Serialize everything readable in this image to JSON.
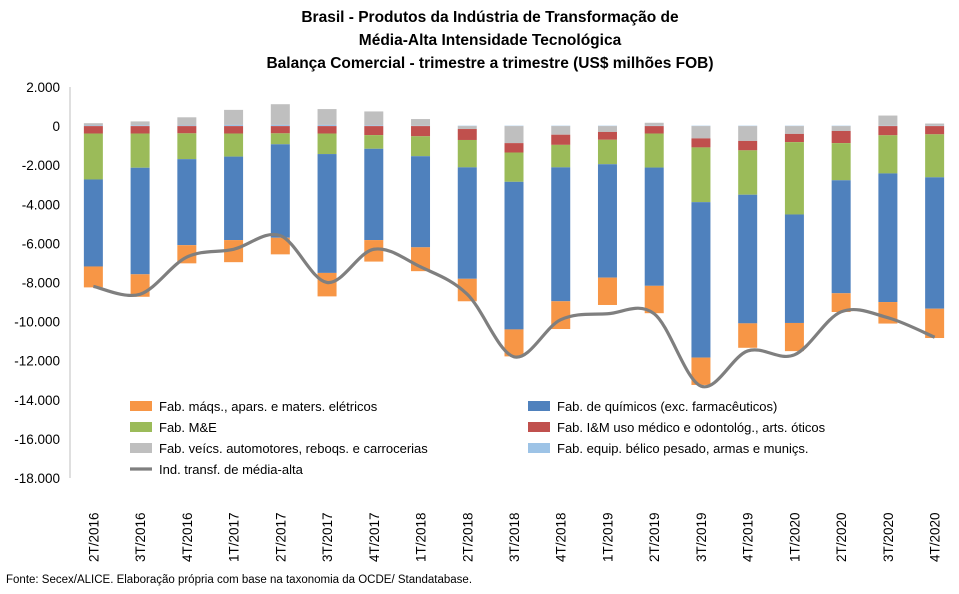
{
  "title_lines": [
    "Brasil - Produtos da Indústria de Transformação de",
    "Média-Alta Intensidade Tecnológica",
    "Balança Comercial - trimestre a trimestre (US$ milhões FOB)"
  ],
  "source": "Fonte: Secex/ALICE. Elaboração própria com base na taxonomia da OCDE/ Standatabase.",
  "chart_data": {
    "type": "bar",
    "stacked": true,
    "title": "Brasil - Produtos da Indústria de Transformação de Média-Alta Intensidade Tecnológica Balança Comercial - trimestre a trimestre (US$ milhões FOB)",
    "categories": [
      "2T/2016",
      "3T/2016",
      "4T/2016",
      "1T/2017",
      "2T/2017",
      "3T/2017",
      "4T/2017",
      "1T/2018",
      "2T/2018",
      "3T/2018",
      "4T/2018",
      "1T/2019",
      "2T/2019",
      "3T/2019",
      "4T/2019",
      "1T/2020",
      "2T/2020",
      "3T/2020",
      "4T/2020"
    ],
    "ylim": [
      -18000,
      2000
    ],
    "yticks": [
      2000,
      0,
      -2000,
      -4000,
      -6000,
      -8000,
      -10000,
      -12000,
      -14000,
      -16000,
      -18000
    ],
    "ytick_labels": [
      "2.000",
      "0",
      "-2.000",
      "-4.000",
      "-6.000",
      "-8.000",
      "-10.000",
      "-12.000",
      "-14.000",
      "-16.000",
      "-18.000"
    ],
    "legend_position": "bottom-left-inside",
    "series": [
      {
        "name": "Fab. equip. bélico pesado, armas e muniçs.",
        "color": "#9dc3e6",
        "kind": "bar",
        "values": [
          30,
          40,
          30,
          60,
          60,
          60,
          40,
          20,
          20,
          20,
          20,
          20,
          20,
          20,
          20,
          20,
          20,
          20,
          20
        ]
      },
      {
        "name": "Fab. veícs. automotores, reboqs. e carrocerias",
        "color": "#bfbfbf",
        "kind": "bar",
        "values": [
          120,
          200,
          420,
          770,
          1060,
          810,
          710,
          340,
          -150,
          -870,
          -440,
          -300,
          150,
          -630,
          -760,
          -400,
          -250,
          520,
          110
        ]
      },
      {
        "name": "Fab. I&M uso médico e odontológ., arts. óticos",
        "color": "#c0504d",
        "kind": "bar",
        "values": [
          -380,
          -380,
          -370,
          -380,
          -370,
          -380,
          -460,
          -520,
          -560,
          -480,
          -520,
          -400,
          -380,
          -460,
          -480,
          -420,
          -620,
          -470,
          -420
        ]
      },
      {
        "name": "Fab. M&E",
        "color": "#9bbb59",
        "kind": "bar",
        "values": [
          -2350,
          -1750,
          -1320,
          -1180,
          -560,
          -1050,
          -700,
          -1020,
          -1400,
          -1500,
          -1150,
          -1250,
          -1740,
          -2800,
          -2270,
          -3700,
          -1900,
          -1950,
          -2200
        ]
      },
      {
        "name": "Fab. de químicos (exc. farmacêuticos)",
        "color": "#4f81bd",
        "kind": "bar",
        "values": [
          -4450,
          -5450,
          -4400,
          -4270,
          -4780,
          -6080,
          -4670,
          -4660,
          -5700,
          -7550,
          -6850,
          -5800,
          -6050,
          -7950,
          -6580,
          -5550,
          -5780,
          -6580,
          -6720
        ]
      },
      {
        "name": "Fab. máqs., apars. e maters. elétricos",
        "color": "#f79646",
        "kind": "bar",
        "values": [
          -1070,
          -1150,
          -930,
          -1130,
          -850,
          -1200,
          -1100,
          -1220,
          -1150,
          -1380,
          -1420,
          -1400,
          -1400,
          -1400,
          -1250,
          -1440,
          -960,
          -1100,
          -1500
        ]
      },
      {
        "name": "Ind. transf. de média-alta",
        "color": "#7f7f7f",
        "kind": "line",
        "values": [
          -8200,
          -8600,
          -6700,
          -6300,
          -5600,
          -8000,
          -6300,
          -7200,
          -8600,
          -11800,
          -9900,
          -9600,
          -9600,
          -13300,
          -11500,
          -11700,
          -9500,
          -9800,
          -10800
        ]
      }
    ],
    "legend_order": [
      "Fab. máqs., apars. e maters. elétricos",
      "Fab. de químicos (exc. farmacêuticos)",
      "Fab. M&E",
      "Fab. I&M uso médico e odontológ., arts. óticos",
      "Fab. veícs. automotores, reboqs. e carrocerias",
      "Fab. equip. bélico pesado, armas e muniçs.",
      "Ind. transf. de média-alta"
    ]
  }
}
